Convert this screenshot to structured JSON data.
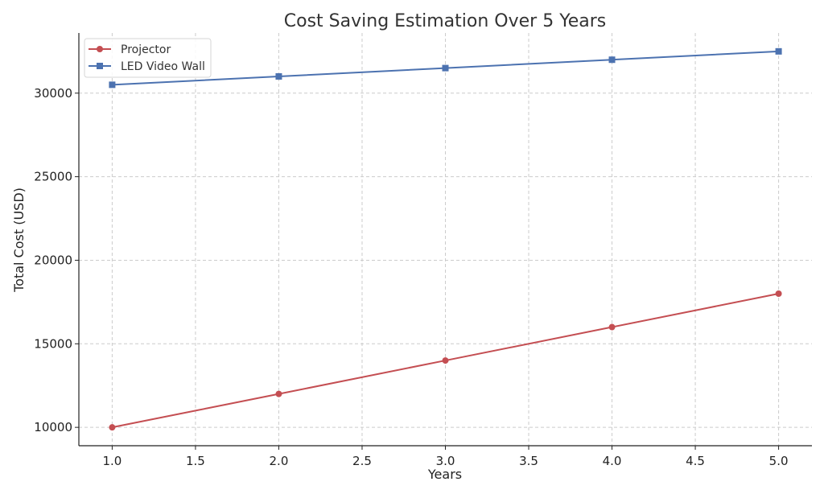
{
  "chart_data": {
    "type": "line",
    "title": "Cost Saving Estimation Over 5 Years",
    "xlabel": "Years",
    "ylabel": "Total Cost (USD)",
    "x": [
      1,
      2,
      3,
      4,
      5
    ],
    "xlim": [
      0.8,
      5.2
    ],
    "ylim": [
      8900,
      33600
    ],
    "xticks": [
      "1.0",
      "1.5",
      "2.0",
      "2.5",
      "3.0",
      "3.5",
      "4.0",
      "4.5",
      "5.0"
    ],
    "yticks": [
      "10000",
      "15000",
      "20000",
      "25000",
      "30000"
    ],
    "grid": true,
    "legend_position": "top-left",
    "series": [
      {
        "name": "Projector",
        "marker": "circle",
        "color": "#c44e52",
        "values": [
          10000,
          12000,
          14000,
          16000,
          18000
        ]
      },
      {
        "name": "LED Video Wall",
        "marker": "square",
        "color": "#4c72b0",
        "values": [
          30500,
          31000,
          31500,
          32000,
          32500
        ]
      }
    ]
  }
}
